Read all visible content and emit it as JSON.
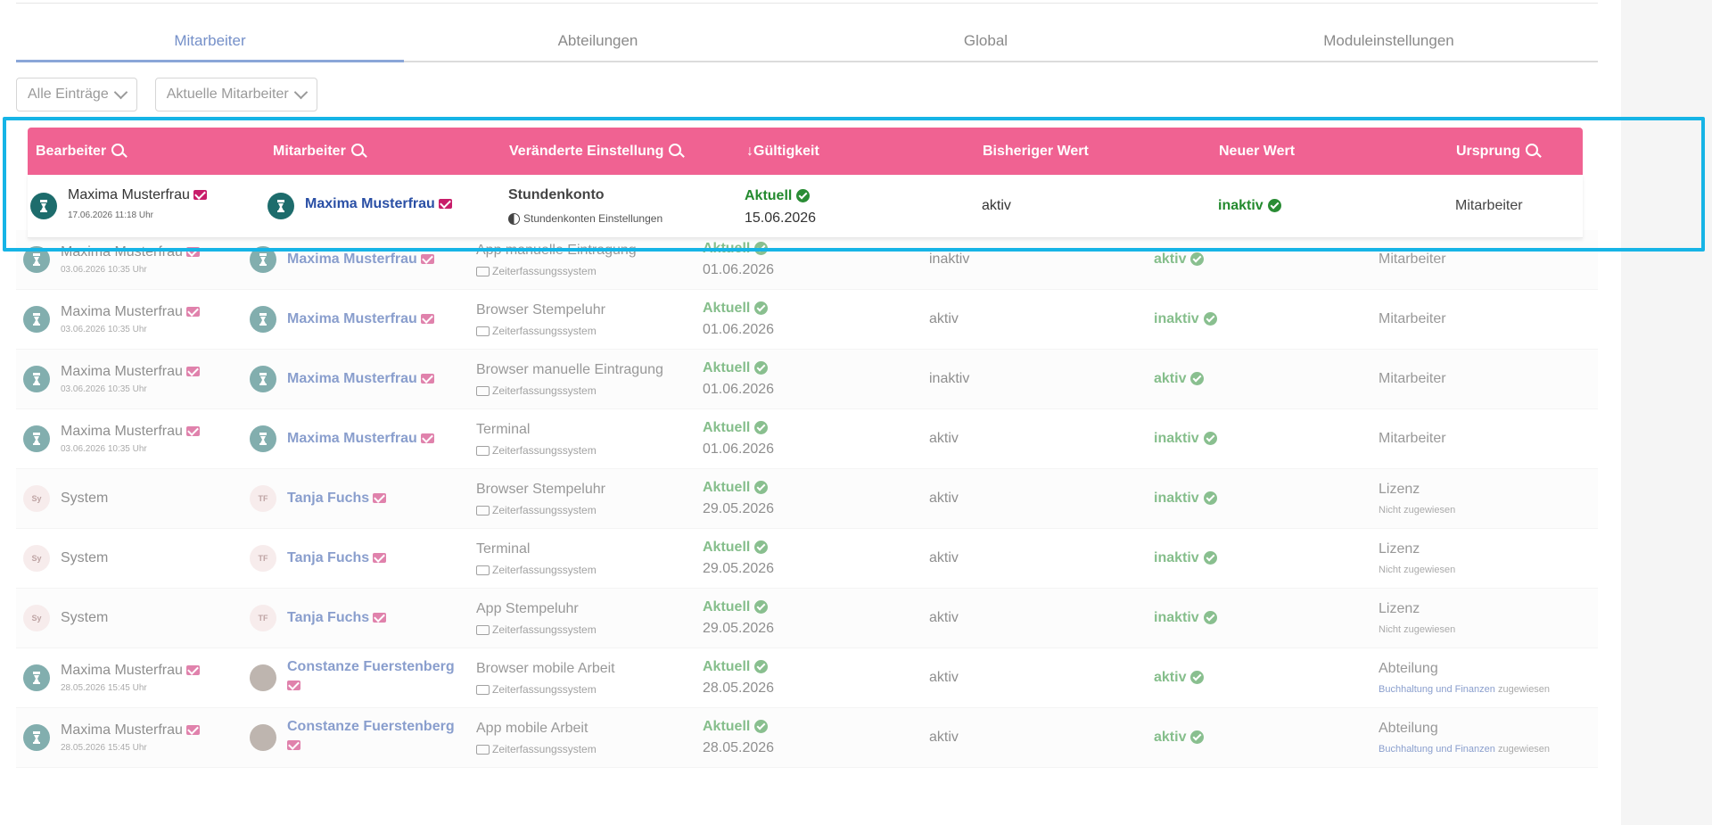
{
  "tabs": [
    {
      "label": "Mitarbeiter",
      "active": true
    },
    {
      "label": "Abteilungen",
      "active": false
    },
    {
      "label": "Global",
      "active": false
    },
    {
      "label": "Moduleinstellungen",
      "active": false
    }
  ],
  "filters": {
    "entries": "Alle Einträge",
    "employees": "Aktuelle Mitarbeiter"
  },
  "table": {
    "headers": {
      "editor": "Bearbeiter",
      "employee": "Mitarbeiter",
      "setting": "Veränderte Einstellung",
      "validity": "Gültigkeit",
      "old_value": "Bisheriger Wert",
      "new_value": "Neuer Wert",
      "origin": "Ursprung"
    },
    "highlighted_row": {
      "editor": "Maxima Musterfrau",
      "editor_time": "17.06.2026 11:18 Uhr",
      "employee": "Maxima Musterfrau",
      "setting": "Stundenkonto",
      "setting_sub": "Stundenkonten Einstellungen",
      "status": "Aktuell",
      "date": "15.06.2026",
      "old_value": "aktiv",
      "new_value": "inaktiv",
      "origin": "Mitarbeiter"
    },
    "rows": [
      {
        "editor": "Maxima Musterfrau",
        "editor_time": "03.06.2026 10:35 Uhr",
        "employee": "Maxima Musterfrau",
        "setting": "App manuelle Eintragung",
        "setting_sub": "Zeiterfassungssystem",
        "status": "Aktuell",
        "date": "01.06.2026",
        "old_value": "inaktiv",
        "new_value": "aktiv",
        "origin": "Mitarbeiter"
      },
      {
        "editor": "Maxima Musterfrau",
        "editor_time": "03.06.2026 10:35 Uhr",
        "employee": "Maxima Musterfrau",
        "setting": "Browser Stempeluhr",
        "setting_sub": "Zeiterfassungssystem",
        "status": "Aktuell",
        "date": "01.06.2026",
        "old_value": "aktiv",
        "new_value": "inaktiv",
        "origin": "Mitarbeiter"
      },
      {
        "editor": "Maxima Musterfrau",
        "editor_time": "03.06.2026 10:35 Uhr",
        "employee": "Maxima Musterfrau",
        "setting": "Browser manuelle Eintragung",
        "setting_sub": "Zeiterfassungssystem",
        "status": "Aktuell",
        "date": "01.06.2026",
        "old_value": "inaktiv",
        "new_value": "aktiv",
        "origin": "Mitarbeiter"
      },
      {
        "editor": "Maxima Musterfrau",
        "editor_time": "03.06.2026 10:35 Uhr",
        "employee": "Maxima Musterfrau",
        "setting": "Terminal",
        "setting_sub": "Zeiterfassungssystem",
        "status": "Aktuell",
        "date": "01.06.2026",
        "old_value": "aktiv",
        "new_value": "inaktiv",
        "origin": "Mitarbeiter"
      },
      {
        "editor": "System",
        "editor_initials": "Sy",
        "employee": "Tanja Fuchs",
        "employee_initials": "TF",
        "setting": "Browser Stempeluhr",
        "setting_sub": "Zeiterfassungssystem",
        "status": "Aktuell",
        "date": "29.05.2026",
        "old_value": "aktiv",
        "new_value": "inaktiv",
        "origin": "Lizenz",
        "origin_sub": "Nicht zugewiesen"
      },
      {
        "editor": "System",
        "editor_initials": "Sy",
        "employee": "Tanja Fuchs",
        "employee_initials": "TF",
        "setting": "Terminal",
        "setting_sub": "Zeiterfassungssystem",
        "status": "Aktuell",
        "date": "29.05.2026",
        "old_value": "aktiv",
        "new_value": "inaktiv",
        "origin": "Lizenz",
        "origin_sub": "Nicht zugewiesen"
      },
      {
        "editor": "System",
        "editor_initials": "Sy",
        "employee": "Tanja Fuchs",
        "employee_initials": "TF",
        "setting": "App Stempeluhr",
        "setting_sub": "Zeiterfassungssystem",
        "status": "Aktuell",
        "date": "29.05.2026",
        "old_value": "aktiv",
        "new_value": "inaktiv",
        "origin": "Lizenz",
        "origin_sub": "Nicht zugewiesen"
      },
      {
        "editor": "Maxima Musterfrau",
        "editor_time": "28.05.2026 15:45 Uhr",
        "employee": "Constanze Fuerstenberg",
        "setting": "Browser mobile Arbeit",
        "setting_sub": "Zeiterfassungssystem",
        "status": "Aktuell",
        "date": "28.05.2026",
        "old_value": "aktiv",
        "new_value": "aktiv",
        "origin": "Abteilung",
        "origin_dept": "Buchhaltung und Finanzen",
        "origin_suffix": "zugewiesen"
      },
      {
        "editor": "Maxima Musterfrau",
        "editor_time": "28.05.2026 15:45 Uhr",
        "employee": "Constanze Fuerstenberg",
        "setting": "App mobile Arbeit",
        "setting_sub": "Zeiterfassungssystem",
        "status": "Aktuell",
        "date": "28.05.2026",
        "old_value": "aktiv",
        "new_value": "aktiv",
        "origin": "Abteilung",
        "origin_dept": "Buchhaltung und Finanzen",
        "origin_suffix": "zugewiesen"
      }
    ]
  },
  "colors": {
    "header_bg": "#f06292",
    "highlight_frame": "#16b4e6",
    "status_green": "#238a2e",
    "link_blue": "#2a4fa5",
    "mail_pink": "#c81d6a"
  }
}
